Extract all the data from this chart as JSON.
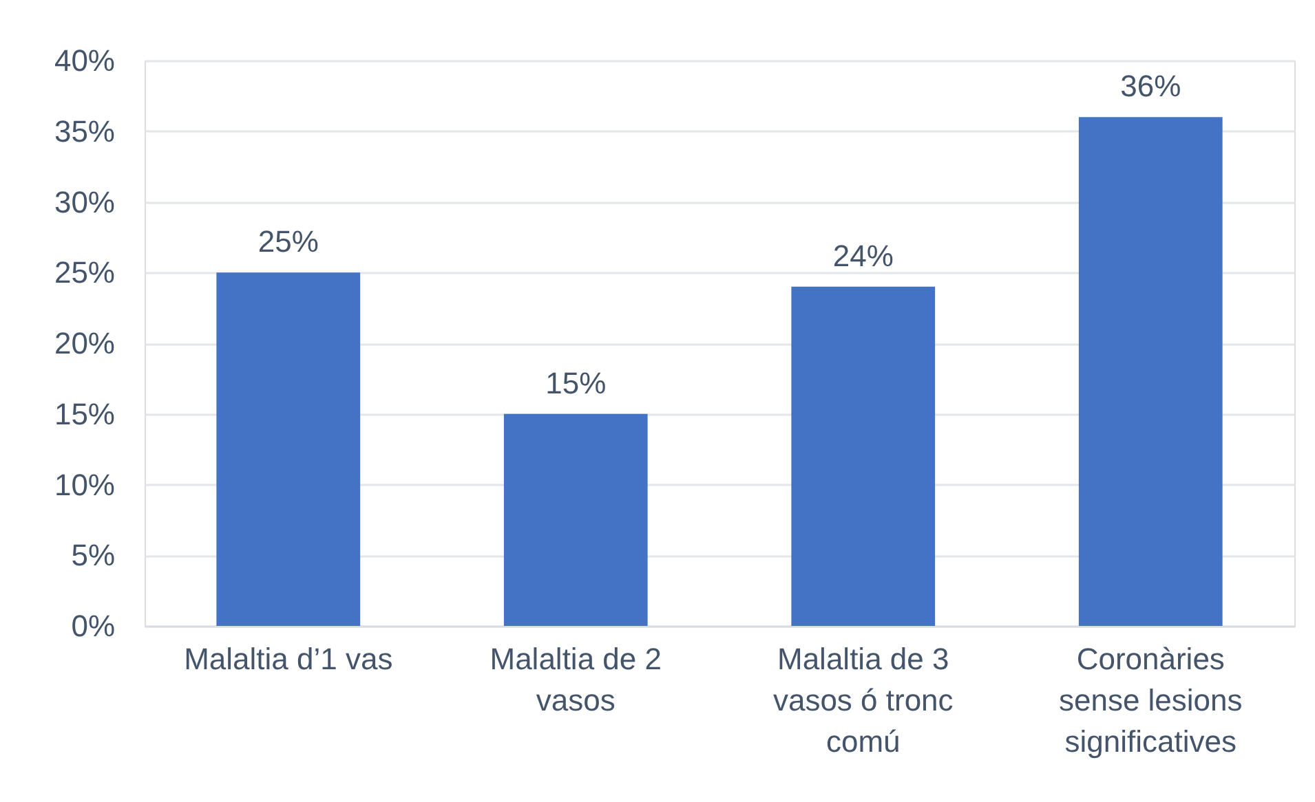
{
  "chart_data": {
    "type": "bar",
    "categories": [
      "Malaltia d’1 vas",
      "Malaltia de 2 vasos",
      "Malaltia de 3 vasos ó tronc comú",
      "Coronàries sense lesions significatives"
    ],
    "values": [
      25,
      15,
      24,
      36
    ],
    "color": "#4472c4",
    "ylim": [
      0,
      40
    ],
    "yticks": [
      {
        "value": 0,
        "label": "0%"
      },
      {
        "value": 5,
        "label": "5%"
      },
      {
        "value": 10,
        "label": "10%"
      },
      {
        "value": 15,
        "label": "15%"
      },
      {
        "value": 20,
        "label": "20%"
      },
      {
        "value": 25,
        "label": "25%"
      },
      {
        "value": 30,
        "label": "30%"
      },
      {
        "value": 35,
        "label": "35%"
      },
      {
        "value": 40,
        "label": "40%"
      }
    ],
    "grid": "y",
    "value_labels": [
      "25%",
      "15%",
      "24%",
      "36%"
    ]
  }
}
